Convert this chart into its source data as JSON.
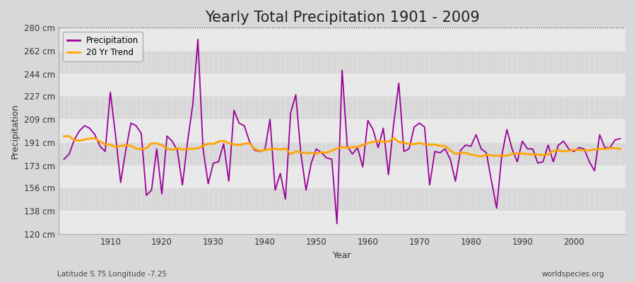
{
  "title": "Yearly Total Precipitation 1901 - 2009",
  "xlabel": "Year",
  "ylabel": "Precipitation",
  "subtitle_left": "Latitude 5.75 Longitude -7.25",
  "subtitle_right": "worldspecies.org",
  "years": [
    1901,
    1902,
    1903,
    1904,
    1905,
    1906,
    1907,
    1908,
    1909,
    1910,
    1911,
    1912,
    1913,
    1914,
    1915,
    1916,
    1917,
    1918,
    1919,
    1920,
    1921,
    1922,
    1923,
    1924,
    1925,
    1926,
    1927,
    1928,
    1929,
    1930,
    1931,
    1932,
    1933,
    1934,
    1935,
    1936,
    1937,
    1938,
    1939,
    1940,
    1941,
    1942,
    1943,
    1944,
    1945,
    1946,
    1947,
    1948,
    1949,
    1950,
    1951,
    1952,
    1953,
    1954,
    1955,
    1956,
    1957,
    1958,
    1959,
    1960,
    1961,
    1962,
    1963,
    1964,
    1965,
    1966,
    1967,
    1968,
    1969,
    1970,
    1971,
    1972,
    1973,
    1974,
    1975,
    1976,
    1977,
    1978,
    1979,
    1980,
    1981,
    1982,
    1983,
    1984,
    1985,
    1986,
    1987,
    1988,
    1989,
    1990,
    1991,
    1992,
    1993,
    1994,
    1995,
    1996,
    1997,
    1998,
    1999,
    2000,
    2001,
    2002,
    2003,
    2004,
    2005,
    2006,
    2007,
    2008,
    2009
  ],
  "precip": [
    178,
    182,
    193,
    200,
    204,
    202,
    197,
    188,
    184,
    230,
    197,
    160,
    185,
    206,
    204,
    198,
    150,
    154,
    186,
    151,
    196,
    192,
    185,
    158,
    192,
    220,
    271,
    186,
    159,
    175,
    176,
    190,
    161,
    216,
    206,
    204,
    192,
    185,
    184,
    185,
    209,
    154,
    167,
    147,
    214,
    228,
    182,
    154,
    175,
    186,
    183,
    179,
    178,
    128,
    247,
    188,
    182,
    187,
    172,
    208,
    201,
    187,
    202,
    166,
    205,
    237,
    184,
    186,
    203,
    206,
    203,
    158,
    184,
    183,
    186,
    178,
    161,
    185,
    189,
    188,
    197,
    186,
    183,
    161,
    140,
    181,
    201,
    186,
    176,
    192,
    186,
    186,
    175,
    176,
    189,
    176,
    189,
    192,
    186,
    184,
    187,
    186,
    176,
    169,
    197,
    187,
    187,
    193,
    194
  ],
  "ylim": [
    120,
    280
  ],
  "yticks": [
    120,
    138,
    156,
    173,
    191,
    209,
    227,
    244,
    262,
    280
  ],
  "ytick_labels": [
    "120 cm",
    "138 cm",
    "156 cm",
    "173 cm",
    "191 cm",
    "209 cm",
    "227 cm",
    "244 cm",
    "262 cm",
    "280 cm"
  ],
  "xticks": [
    1910,
    1920,
    1930,
    1940,
    1950,
    1960,
    1970,
    1980,
    1990,
    2000
  ],
  "precip_color": "#990099",
  "trend_color": "#ffa500",
  "bg_color": "#d8d8d8",
  "plot_bg_light": "#e8e8e8",
  "plot_bg_dark": "#d8d8d8",
  "legend_bg": "#e8e8e8",
  "trend_window": 20,
  "title_fontsize": 15,
  "axis_label_fontsize": 9,
  "tick_fontsize": 8.5
}
